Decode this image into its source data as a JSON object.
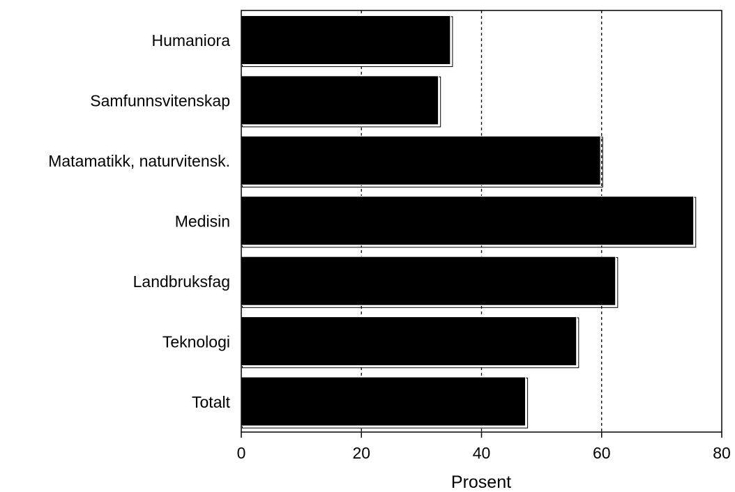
{
  "chart_data": {
    "type": "bar",
    "orientation": "horizontal",
    "title": "",
    "xlabel": "Prosent",
    "ylabel": "",
    "categories": [
      "Humaniora",
      "Samfunnsvitenskap",
      "Matamatikk, naturvitensk.",
      "Medisin",
      "Landbruksfag",
      "Teknologi",
      "Totalt"
    ],
    "values": [
      35,
      33,
      60,
      75.5,
      62.5,
      56,
      47.5
    ],
    "xlim": [
      0,
      80
    ],
    "xticks": [
      0,
      20,
      40,
      60,
      80
    ],
    "xtick_labels": [
      "0",
      "20",
      "40",
      "60",
      "80"
    ],
    "grid": "dashed vertical lines at 40 and 60",
    "bar_color": "#000000",
    "legend": "none"
  }
}
